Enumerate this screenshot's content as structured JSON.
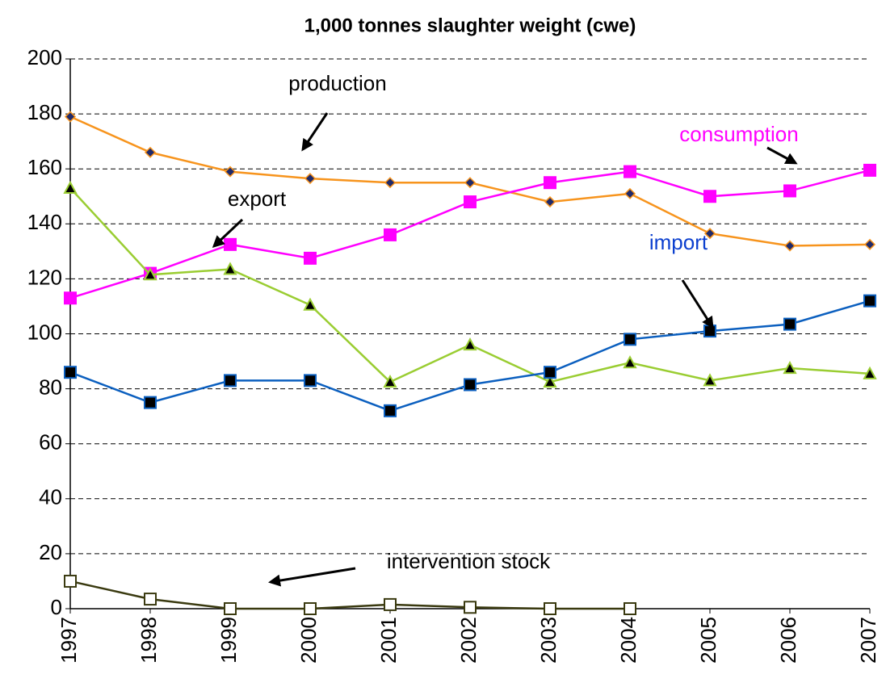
{
  "chart_data": {
    "type": "line",
    "title": "1,000 tonnes slaughter weight (cwe)",
    "categories": [
      "1997",
      "1998",
      "1999",
      "2000",
      "2001",
      "2002",
      "2003",
      "2004",
      "2005",
      "2006",
      "2007"
    ],
    "series": [
      {
        "name": "production",
        "color": "#f7941d",
        "marker": "diamond",
        "marker_fill": "#1f2a6b",
        "values": [
          179,
          166,
          159,
          156.5,
          155,
          155,
          148,
          151,
          136.5,
          132,
          132.5
        ]
      },
      {
        "name": "consumption",
        "color": "#ff00ff",
        "marker": "square",
        "marker_fill": "#ff00ff",
        "values": [
          113,
          122,
          132.5,
          127.5,
          136,
          148,
          155,
          159,
          150,
          152,
          159.5
        ]
      },
      {
        "name": "export",
        "color": "#9acd32",
        "marker": "triangle",
        "marker_fill": "#000000",
        "values": [
          153,
          121.5,
          123.5,
          110.5,
          82.5,
          96,
          82.5,
          89.5,
          83,
          87.5,
          85.5
        ]
      },
      {
        "name": "import",
        "color": "#0b5fbf",
        "marker": "square",
        "marker_fill": "#000000",
        "values": [
          86,
          75,
          83,
          83,
          72,
          81.5,
          86,
          98,
          101,
          103.5,
          112
        ]
      },
      {
        "name": "intervention stock",
        "color": "#3a3a10",
        "marker": "square",
        "marker_fill": "#ffffff",
        "values": [
          10,
          3.5,
          0,
          0,
          1.5,
          0.5,
          0,
          0,
          null,
          null,
          null
        ]
      }
    ],
    "annotations": [
      {
        "text": "production",
        "color": "#000000"
      },
      {
        "text": "consumption",
        "color": "#ff00ff"
      },
      {
        "text": "export",
        "color": "#000000"
      },
      {
        "text": "import",
        "color": "#0b3fcf"
      },
      {
        "text": "intervention stock",
        "color": "#000000"
      }
    ],
    "ylim": [
      0,
      200
    ],
    "yticks": [
      0,
      20,
      40,
      60,
      80,
      100,
      120,
      140,
      160,
      180,
      200
    ],
    "grid": true
  }
}
